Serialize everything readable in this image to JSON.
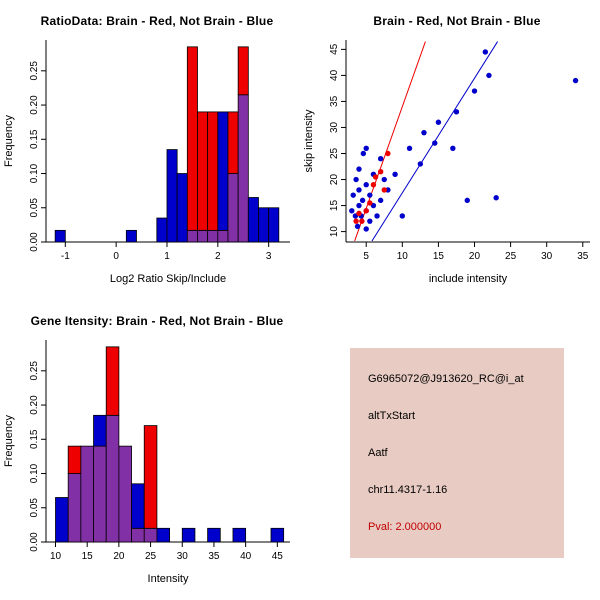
{
  "colors": {
    "blue": "#0000CC",
    "red": "#EE0000",
    "overlap": "#8230A6",
    "axis": "#000000"
  },
  "chart_data": [
    {
      "id": "ratio-histogram",
      "type": "bar",
      "title": "RatioData: Brain - Red, Not Brain - Blue",
      "xlabel": "Log2 Ratio Skip/Include",
      "ylabel": "Frequency",
      "xlim": [
        -1.38,
        3.42
      ],
      "ylim": [
        0,
        0.295
      ],
      "xticks": [
        -1,
        0,
        1,
        2,
        3
      ],
      "xtick_labels": [
        "-1",
        "0",
        "1",
        "2",
        "3"
      ],
      "yticks": [
        0,
        0.05,
        0.1,
        0.15,
        0.2,
        0.25
      ],
      "ytick_labels": [
        "0.00",
        "0.05",
        "0.10",
        "0.15",
        "0.20",
        "0.25"
      ],
      "grid": false,
      "legend_position": "none",
      "bin_width": 0.2,
      "bin_starts": [
        -1.2,
        -1,
        -0.8,
        -0.6,
        -0.4,
        -0.2,
        0,
        0.2,
        0.4,
        0.6,
        0.8,
        1,
        1.2,
        1.4,
        1.6,
        1.8,
        2,
        2.2,
        2.4,
        2.6,
        2.8,
        3
      ],
      "series": [
        {
          "name": "Not Brain",
          "color_key": "blue",
          "values": [
            0.017,
            0,
            0,
            0,
            0,
            0,
            0,
            0.017,
            0,
            0,
            0.035,
            0.135,
            0.1,
            0.017,
            0.017,
            0.017,
            0.19,
            0.1,
            0.215,
            0.065,
            0.05,
            0.05
          ]
        },
        {
          "name": "Brain",
          "color_key": "red",
          "values": [
            0,
            0,
            0,
            0,
            0,
            0,
            0,
            0,
            0,
            0,
            0,
            0,
            0,
            0.285,
            0.19,
            0.19,
            0.017,
            0.19,
            0.285,
            0,
            0,
            0
          ]
        }
      ]
    },
    {
      "id": "intensity-scatter",
      "type": "scatter",
      "title": "Brain - Red, Not Brain - Blue",
      "xlabel": "include intensity",
      "ylabel": "skip intensity",
      "xlim": [
        2.2,
        36
      ],
      "ylim": [
        8,
        46.8
      ],
      "xticks": [
        5,
        10,
        15,
        20,
        25,
        30,
        35
      ],
      "xtick_labels": [
        "5",
        "10",
        "15",
        "20",
        "25",
        "30",
        "35"
      ],
      "yticks": [
        10,
        15,
        20,
        25,
        30,
        35,
        40,
        45
      ],
      "ytick_labels": [
        "10",
        "15",
        "20",
        "25",
        "30",
        "35",
        "40",
        "45"
      ],
      "grid": false,
      "legend_position": "none",
      "series": [
        {
          "name": "Not Brain",
          "color_key": "blue",
          "points": [
            [
              3,
              14
            ],
            [
              3.2,
              17
            ],
            [
              3.5,
              13
            ],
            [
              3.6,
              20
            ],
            [
              3.8,
              11
            ],
            [
              4,
              15
            ],
            [
              4,
              18
            ],
            [
              4,
              22
            ],
            [
              4.3,
              13
            ],
            [
              4.5,
              16
            ],
            [
              4.6,
              25
            ],
            [
              5,
              10.5
            ],
            [
              5,
              14
            ],
            [
              5,
              19
            ],
            [
              5,
              26
            ],
            [
              5.5,
              12
            ],
            [
              5.5,
              17
            ],
            [
              6,
              15
            ],
            [
              6,
              21
            ],
            [
              6.5,
              13
            ],
            [
              7,
              16
            ],
            [
              7,
              24
            ],
            [
              7.5,
              20
            ],
            [
              8,
              18
            ],
            [
              9,
              21
            ],
            [
              10,
              13
            ],
            [
              11,
              26
            ],
            [
              12.5,
              23
            ],
            [
              13,
              29
            ],
            [
              14.5,
              27
            ],
            [
              15,
              31
            ],
            [
              17,
              26
            ],
            [
              17.5,
              33
            ],
            [
              19,
              16
            ],
            [
              20,
              37
            ],
            [
              21.5,
              44.5
            ],
            [
              22,
              40
            ],
            [
              23,
              16.5
            ],
            [
              34,
              39
            ]
          ]
        },
        {
          "name": "Brain",
          "color_key": "red",
          "points": [
            [
              3.6,
              12
            ],
            [
              4,
              13.5
            ],
            [
              4.4,
              12
            ],
            [
              5,
              14
            ],
            [
              5.5,
              15.5
            ],
            [
              6,
              19
            ],
            [
              6.3,
              20.5
            ],
            [
              7,
              21.5
            ],
            [
              7.5,
              18
            ],
            [
              8,
              25
            ]
          ]
        }
      ],
      "lines": [
        {
          "name": "brain-fit-line",
          "color_key": "red",
          "x1": 3.4,
          "y1": 8.2,
          "x2": 13.2,
          "y2": 46.5
        },
        {
          "name": "notbrain-fit-line",
          "color_key": "blue",
          "x1": 5.8,
          "y1": 8.2,
          "x2": 23.2,
          "y2": 46.5
        }
      ]
    },
    {
      "id": "gene-intensity-histogram",
      "type": "bar",
      "title": "Gene Itensity: Brain - Red, Not Brain - Blue",
      "xlabel": "Intensity",
      "ylabel": "Frequency",
      "xlim": [
        8.5,
        47
      ],
      "ylim": [
        0,
        0.295
      ],
      "xticks": [
        10,
        15,
        20,
        25,
        30,
        35,
        40,
        45
      ],
      "xtick_labels": [
        "10",
        "15",
        "20",
        "25",
        "30",
        "35",
        "40",
        "45"
      ],
      "yticks": [
        0,
        0.05,
        0.1,
        0.15,
        0.2,
        0.25
      ],
      "ytick_labels": [
        "0.00",
        "0.05",
        "0.10",
        "0.15",
        "0.20",
        "0.25"
      ],
      "grid": false,
      "legend_position": "none",
      "bin_width": 2,
      "bin_starts": [
        10,
        12,
        14,
        16,
        18,
        20,
        22,
        24,
        26,
        28,
        30,
        32,
        34,
        36,
        38,
        40,
        42,
        44
      ],
      "series": [
        {
          "name": "Not Brain",
          "color_key": "blue",
          "values": [
            0.065,
            0.1,
            0.14,
            0.185,
            0.185,
            0.14,
            0.085,
            0.02,
            0.02,
            0,
            0.02,
            0,
            0.02,
            0,
            0.02,
            0,
            0,
            0.02
          ]
        },
        {
          "name": "Brain",
          "color_key": "red",
          "values": [
            0,
            0.14,
            0.14,
            0.14,
            0.285,
            0.14,
            0.02,
            0.17,
            0,
            0,
            0,
            0,
            0,
            0,
            0,
            0,
            0,
            0
          ]
        }
      ]
    }
  ],
  "info_box": {
    "bg_color": "#E8CCC3",
    "lines": [
      {
        "text": "G6965072@J913620_RC@i_at",
        "color": "#000000"
      },
      {
        "text": "altTxStart",
        "color": "#000000"
      },
      {
        "text": "Aatf",
        "color": "#000000"
      },
      {
        "text": "chr11.4317-1.16",
        "color": "#000000"
      },
      {
        "text": "Pval: 2.000000",
        "color": "#C00000"
      }
    ]
  }
}
